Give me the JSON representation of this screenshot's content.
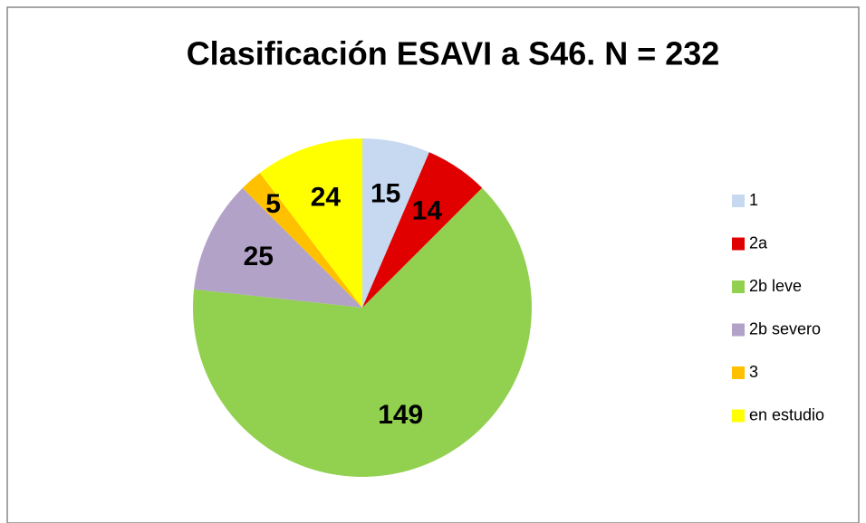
{
  "chart_data": {
    "type": "pie",
    "title": "Clasificación ESAVI a S46.  N = 232",
    "categories": [
      "1",
      "2a",
      "2b leve",
      "2b severo",
      "3",
      "en estudio"
    ],
    "values": [
      15,
      14,
      149,
      25,
      5,
      24
    ],
    "colors": [
      "#c6d9f1",
      "#e00000",
      "#92d050",
      "#b3a2c7",
      "#ffc000",
      "#ffff00"
    ],
    "legend": "right"
  }
}
